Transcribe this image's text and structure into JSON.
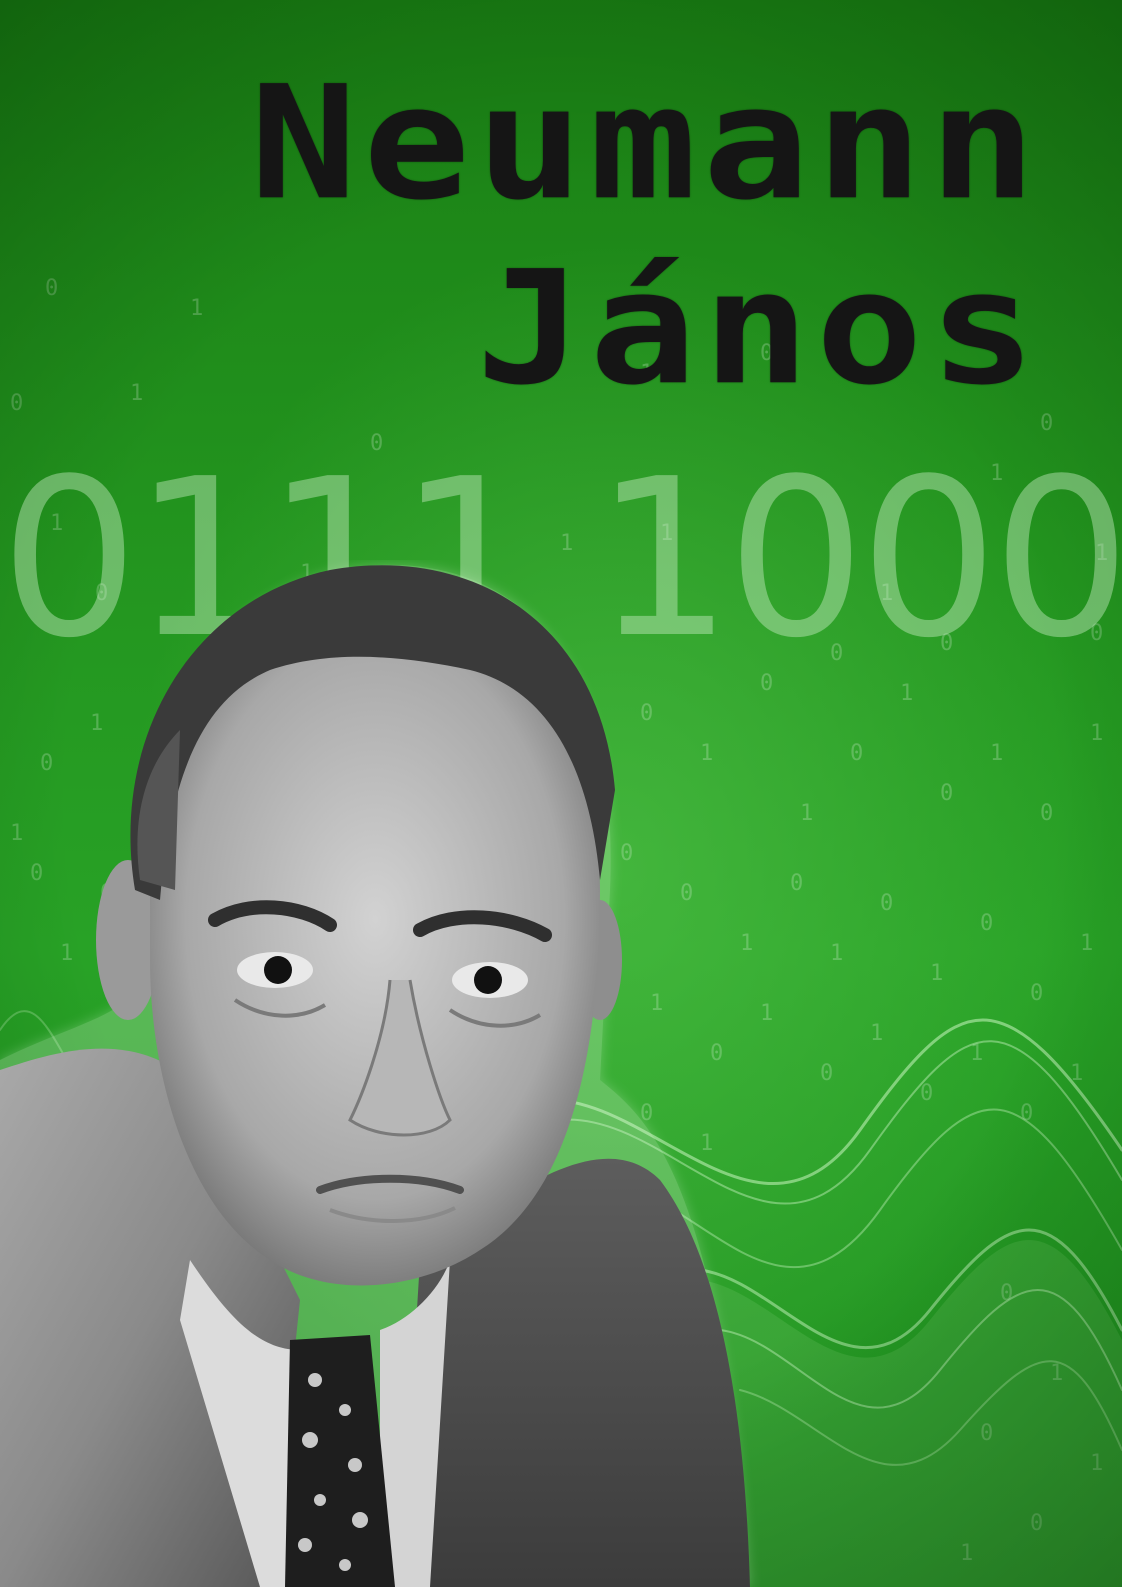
{
  "poster": {
    "name_first": "Neumann",
    "name_second": "János",
    "binary_text": "0111 1000",
    "portrait": "portrait-photo-man-in-suit",
    "colors": {
      "background": "#23951f",
      "name_text": "#151515",
      "binary_text": "#d2f0cd"
    }
  }
}
